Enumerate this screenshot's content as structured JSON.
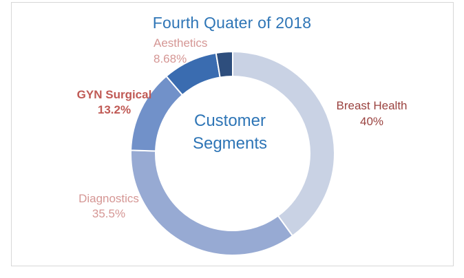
{
  "canvas": {
    "background": "#ffffff",
    "border_color": "#d7d7d7"
  },
  "chart": {
    "title_color": "#2e75b6",
    "center_text_color": "#2e75b6"
  },
  "chart_data": {
    "type": "pie",
    "subtype": "donut",
    "title": "Fourth Quater of 2018",
    "center_text": "Customer Segments",
    "center_text_lines": [
      "Customer",
      "Segments"
    ],
    "start_angle_deg": 0,
    "direction": "clockwise",
    "hole_ratio": 0.76,
    "legend": "none",
    "segments": [
      {
        "label": "Breast Health",
        "pct_text": "40%",
        "value": 40,
        "color": "#c9d2e4",
        "label_color": "#9a423f"
      },
      {
        "label": "Diagnostics",
        "pct_text": "35.5%",
        "value": 35.5,
        "color": "#97aad3",
        "label_color": "#d59694"
      },
      {
        "label": "GYN Surgical",
        "pct_text": "13.2%",
        "value": 13.2,
        "color": "#7191c9",
        "label_color": "#c05a55"
      },
      {
        "label": "Aesthetics",
        "pct_text": "8.68%",
        "value": 8.68,
        "color": "#3a6cb0",
        "label_color": "#d59694"
      },
      {
        "label": "",
        "pct_text": "",
        "value": 2.62,
        "color": "#2e4e7d",
        "label_color": ""
      }
    ]
  }
}
